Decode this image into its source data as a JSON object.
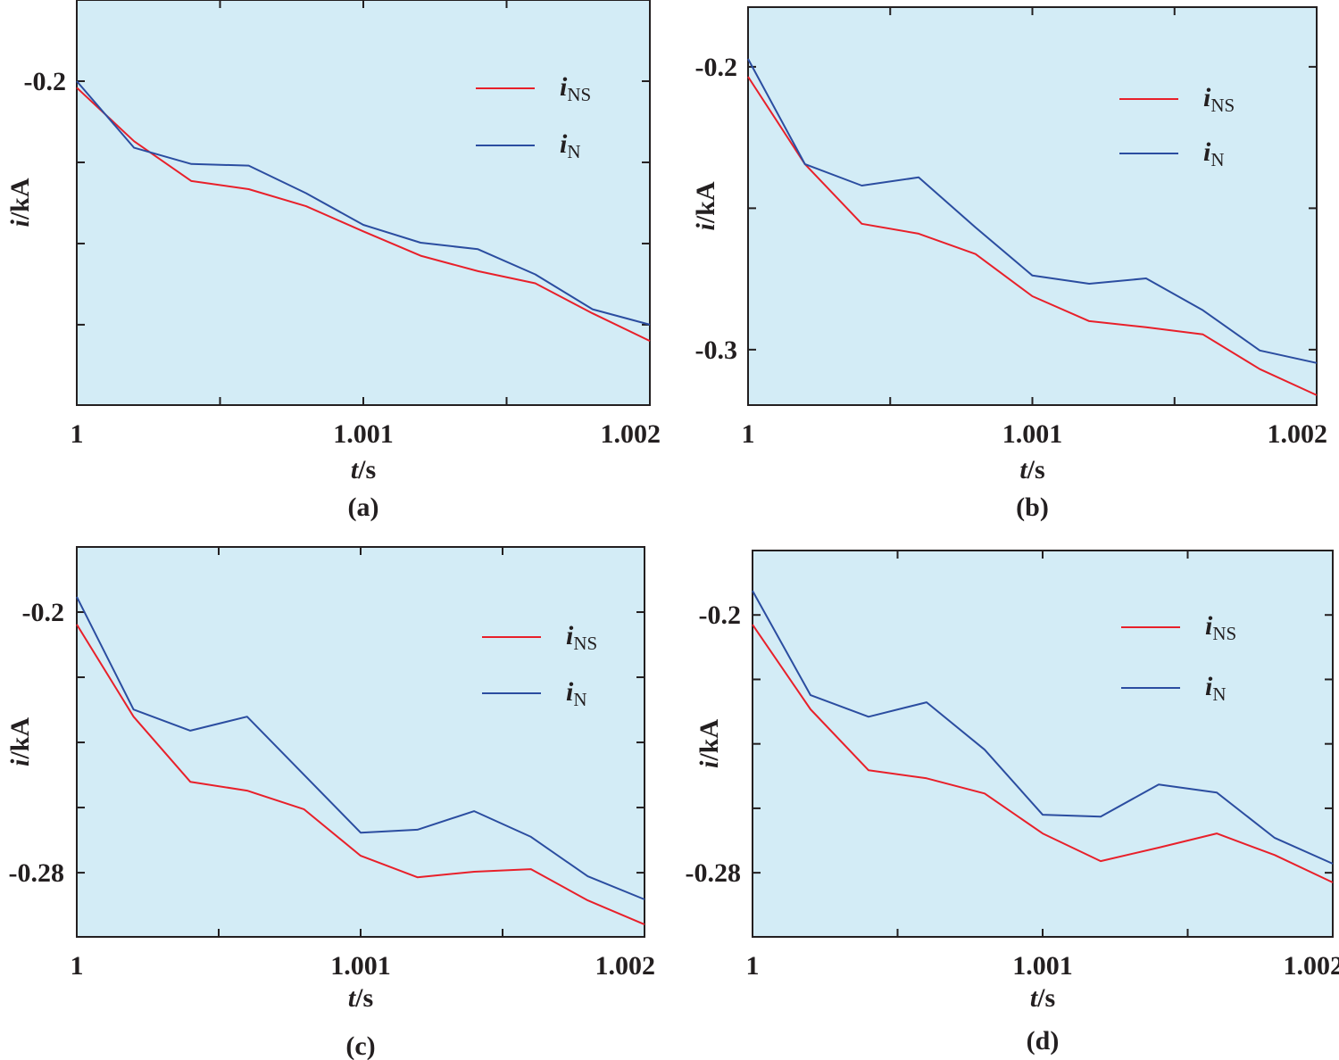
{
  "colors": {
    "i_NS": "#e8202a",
    "i_N": "#2b4da0",
    "plot_background": "#d3ecf6"
  },
  "chart_data": [
    {
      "id": "a",
      "type": "line",
      "panel_label": "(a)",
      "xlabel_italic": "t",
      "xlabel_unit": "/s",
      "ylabel_italic": "i",
      "ylabel_unit": "/kA",
      "xlim": [
        1.0,
        1.002
      ],
      "ylim": [
        -0.2399,
        -0.19
      ],
      "x_ticks": [
        1.0,
        1.0005,
        1.001,
        1.0015,
        1.002
      ],
      "x_tick_labels": [
        "1",
        "",
        "1.001",
        "",
        "1.002"
      ],
      "y_ticks": [
        -0.2,
        -0.21,
        -0.22,
        -0.23
      ],
      "y_tick_labels": [
        "-0.2",
        "",
        "",
        ""
      ],
      "legend": {
        "position": "top-right",
        "entries": [
          {
            "key": "i_NS",
            "main": "i",
            "sub": "NS"
          },
          {
            "key": "i_N",
            "main": "i",
            "sub": "N"
          }
        ]
      },
      "x": [
        1.0,
        1.0002,
        1.0004,
        1.0006,
        1.0008,
        1.001,
        1.0012,
        1.0014,
        1.0016,
        1.0018,
        1.002
      ],
      "series": [
        {
          "name": "i_NS",
          "values": [
            -0.2008,
            -0.2074,
            -0.2123,
            -0.2133,
            -0.2154,
            -0.2185,
            -0.2215,
            -0.2234,
            -0.2249,
            -0.2286,
            -0.232
          ]
        },
        {
          "name": "i_N",
          "values": [
            -0.2,
            -0.2082,
            -0.2102,
            -0.2104,
            -0.2138,
            -0.2177,
            -0.2199,
            -0.2207,
            -0.2238,
            -0.2281,
            -0.23
          ]
        }
      ]
    },
    {
      "id": "b",
      "type": "line",
      "panel_label": "(b)",
      "xlabel_italic": "t",
      "xlabel_unit": "/s",
      "ylabel_italic": "i",
      "ylabel_unit": "/kA",
      "xlim": [
        1.0,
        1.002
      ],
      "ylim": [
        -0.3196,
        -0.1789
      ],
      "x_ticks": [
        1.0,
        1.0005,
        1.001,
        1.0015,
        1.002
      ],
      "x_tick_labels": [
        "1",
        "",
        "1.001",
        "",
        "1.002"
      ],
      "y_ticks": [
        -0.2,
        -0.25,
        -0.3
      ],
      "y_tick_labels": [
        "-0.2",
        "",
        "-0.3"
      ],
      "legend": {
        "position": "top-right",
        "entries": [
          {
            "key": "i_NS",
            "main": "i",
            "sub": "NS"
          },
          {
            "key": "i_N",
            "main": "i",
            "sub": "N"
          }
        ]
      },
      "x": [
        1.0,
        1.0002,
        1.0004,
        1.0006,
        1.0008,
        1.001,
        1.0012,
        1.0014,
        1.0016,
        1.0018,
        1.002
      ],
      "series": [
        {
          "name": "i_NS",
          "values": [
            -0.2035,
            -0.2344,
            -0.2555,
            -0.259,
            -0.2662,
            -0.2811,
            -0.2899,
            -0.2921,
            -0.2946,
            -0.3069,
            -0.3161
          ]
        },
        {
          "name": "i_N",
          "values": [
            -0.1972,
            -0.2344,
            -0.242,
            -0.2391,
            -0.2568,
            -0.2738,
            -0.2767,
            -0.2748,
            -0.2861,
            -0.3003,
            -0.3047
          ]
        }
      ]
    },
    {
      "id": "c",
      "type": "line",
      "panel_label": "(c)",
      "xlabel_italic": "t",
      "xlabel_unit": "/s",
      "ylabel_italic": "i",
      "ylabel_unit": "/kA",
      "xlim": [
        1.0,
        1.002
      ],
      "ylim": [
        -0.2997,
        -0.18
      ],
      "x_ticks": [
        1.0,
        1.0005,
        1.001,
        1.0015,
        1.002
      ],
      "x_tick_labels": [
        "1",
        "",
        "1.001",
        "",
        "1.002"
      ],
      "y_ticks": [
        -0.2,
        -0.22,
        -0.24,
        -0.26,
        -0.28
      ],
      "y_tick_labels": [
        "-0.2",
        "",
        "",
        "",
        "-0.28"
      ],
      "legend": {
        "position": "top-right",
        "entries": [
          {
            "key": "i_NS",
            "main": "i",
            "sub": "NS"
          },
          {
            "key": "i_N",
            "main": "i",
            "sub": "N"
          }
        ]
      },
      "x": [
        1.0,
        1.0002,
        1.0004,
        1.0006,
        1.0008,
        1.001,
        1.0012,
        1.0014,
        1.0016,
        1.0018,
        1.002
      ],
      "series": [
        {
          "name": "i_NS",
          "values": [
            -0.2038,
            -0.2321,
            -0.2521,
            -0.2548,
            -0.2605,
            -0.2748,
            -0.2814,
            -0.2797,
            -0.2789,
            -0.2885,
            -0.2959
          ]
        },
        {
          "name": "i_N",
          "values": [
            -0.1953,
            -0.2299,
            -0.2364,
            -0.2321,
            -0.2499,
            -0.2677,
            -0.2668,
            -0.2611,
            -0.269,
            -0.2811,
            -0.2882
          ]
        }
      ]
    },
    {
      "id": "d",
      "type": "line",
      "panel_label": "(d)",
      "xlabel_italic": "t",
      "xlabel_unit": "/s",
      "ylabel_italic": "i",
      "ylabel_unit": "/kA",
      "xlim": [
        1.0,
        1.002
      ],
      "ylim": [
        -0.2999,
        -0.18
      ],
      "x_ticks": [
        1.0,
        1.0005,
        1.001,
        1.0015,
        1.002
      ],
      "x_tick_labels": [
        "1",
        "",
        "1.001",
        "",
        "1.002"
      ],
      "y_ticks": [
        -0.2,
        -0.22,
        -0.24,
        -0.26,
        -0.28
      ],
      "y_tick_labels": [
        "-0.2",
        "",
        "",
        "",
        "-0.28"
      ],
      "legend": {
        "position": "top-right",
        "entries": [
          {
            "key": "i_NS",
            "main": "i",
            "sub": "NS"
          },
          {
            "key": "i_N",
            "main": "i",
            "sub": "N"
          }
        ]
      },
      "x": [
        1.0,
        1.0002,
        1.0004,
        1.0006,
        1.0008,
        1.001,
        1.0012,
        1.0014,
        1.0016,
        1.0018,
        1.002
      ],
      "series": [
        {
          "name": "i_NS",
          "values": [
            -0.203,
            -0.2293,
            -0.2482,
            -0.2507,
            -0.2554,
            -0.2678,
            -0.2764,
            -0.2722,
            -0.2678,
            -0.2745,
            -0.283
          ]
        },
        {
          "name": "i_N",
          "values": [
            -0.1925,
            -0.2249,
            -0.2316,
            -0.2271,
            -0.2418,
            -0.262,
            -0.2626,
            -0.2526,
            -0.2551,
            -0.2692,
            -0.2772
          ]
        }
      ]
    }
  ]
}
